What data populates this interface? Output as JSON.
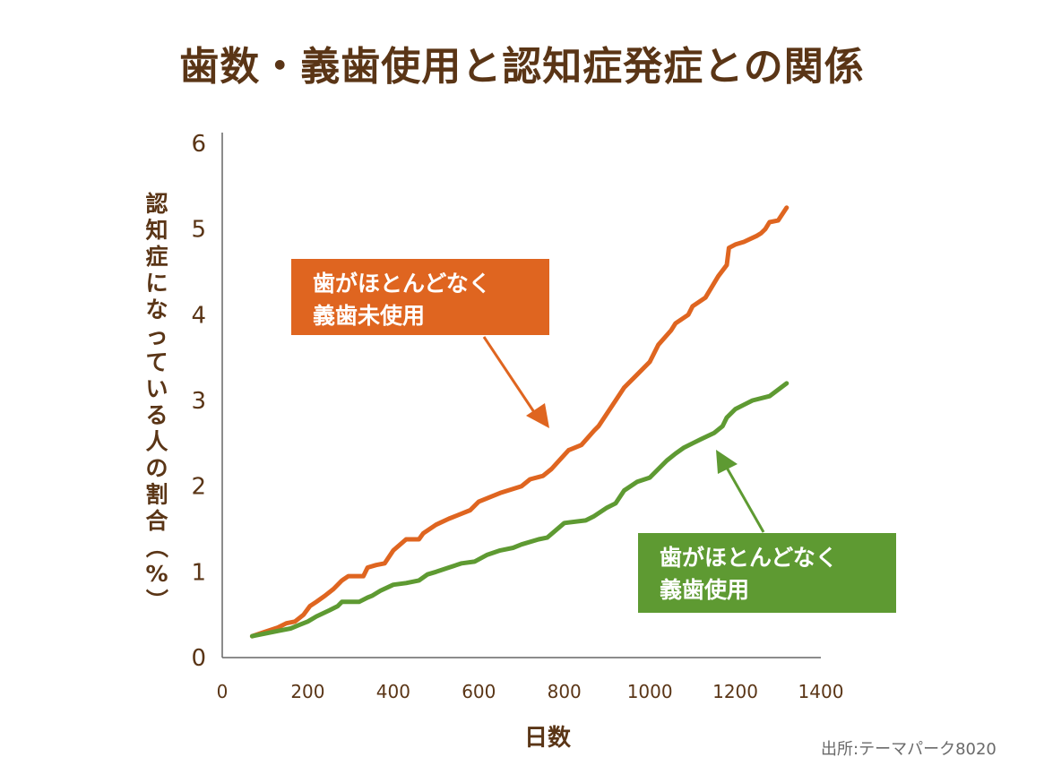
{
  "title": "歯数・義歯使用と認知症発症との関係",
  "source": "出所:テーマパーク8020",
  "callouts": {
    "orange": [
      "歯がほとんどなく",
      "義歯未使用"
    ],
    "green": [
      "歯がほとんどなく",
      "義歯使用"
    ]
  },
  "chart_data": {
    "type": "line",
    "title": "歯数・義歯使用と認知症発症との関係",
    "xlabel": "日数",
    "ylabel": "認知症になっている人の割合（%）",
    "xlim": [
      0,
      1400
    ],
    "ylim": [
      0,
      6
    ],
    "xticks": [
      "0",
      "200",
      "400",
      "600",
      "800",
      "1000",
      "1200",
      "1400"
    ],
    "yticks": [
      "0",
      "1",
      "2",
      "3",
      "4",
      "5",
      "6"
    ],
    "grid": false,
    "legend": "none",
    "series": [
      {
        "name": "歯がほとんどなく義歯未使用",
        "color": "#df6520",
        "x": [
          70,
          100,
          130,
          150,
          170,
          190,
          205,
          220,
          240,
          260,
          280,
          295,
          330,
          340,
          360,
          380,
          400,
          430,
          460,
          470,
          500,
          530,
          560,
          580,
          600,
          650,
          700,
          720,
          750,
          770,
          810,
          840,
          870,
          880,
          920,
          940,
          970,
          1000,
          1020,
          1050,
          1060,
          1090,
          1100,
          1130,
          1160,
          1180,
          1185,
          1200,
          1220,
          1250,
          1260,
          1270,
          1280,
          1300,
          1320
        ],
        "y": [
          0.25,
          0.3,
          0.35,
          0.4,
          0.42,
          0.5,
          0.6,
          0.65,
          0.72,
          0.8,
          0.9,
          0.95,
          0.95,
          1.05,
          1.08,
          1.1,
          1.25,
          1.38,
          1.38,
          1.45,
          1.55,
          1.62,
          1.68,
          1.72,
          1.82,
          1.92,
          2.0,
          2.08,
          2.12,
          2.2,
          2.42,
          2.48,
          2.65,
          2.7,
          3.0,
          3.15,
          3.3,
          3.45,
          3.65,
          3.82,
          3.9,
          4.0,
          4.1,
          4.2,
          4.45,
          4.58,
          4.78,
          4.82,
          4.85,
          4.92,
          4.95,
          5.0,
          5.08,
          5.1,
          5.25
        ]
      },
      {
        "name": "歯がほとんどなく義歯使用",
        "color": "#5e9a32",
        "x": [
          70,
          100,
          130,
          160,
          180,
          200,
          220,
          250,
          270,
          280,
          320,
          340,
          350,
          370,
          400,
          430,
          460,
          480,
          500,
          530,
          560,
          590,
          620,
          650,
          680,
          700,
          740,
          760,
          800,
          850,
          870,
          900,
          920,
          940,
          970,
          1000,
          1020,
          1040,
          1060,
          1080,
          1100,
          1120,
          1150,
          1170,
          1180,
          1200,
          1220,
          1240,
          1280,
          1320
        ],
        "y": [
          0.25,
          0.28,
          0.31,
          0.34,
          0.38,
          0.42,
          0.48,
          0.55,
          0.6,
          0.65,
          0.65,
          0.7,
          0.72,
          0.78,
          0.85,
          0.87,
          0.9,
          0.97,
          1.0,
          1.05,
          1.1,
          1.12,
          1.2,
          1.25,
          1.28,
          1.32,
          1.38,
          1.4,
          1.57,
          1.6,
          1.65,
          1.75,
          1.8,
          1.95,
          2.05,
          2.1,
          2.2,
          2.3,
          2.38,
          2.45,
          2.5,
          2.55,
          2.62,
          2.7,
          2.8,
          2.9,
          2.95,
          3.0,
          3.05,
          3.2
        ]
      }
    ]
  }
}
